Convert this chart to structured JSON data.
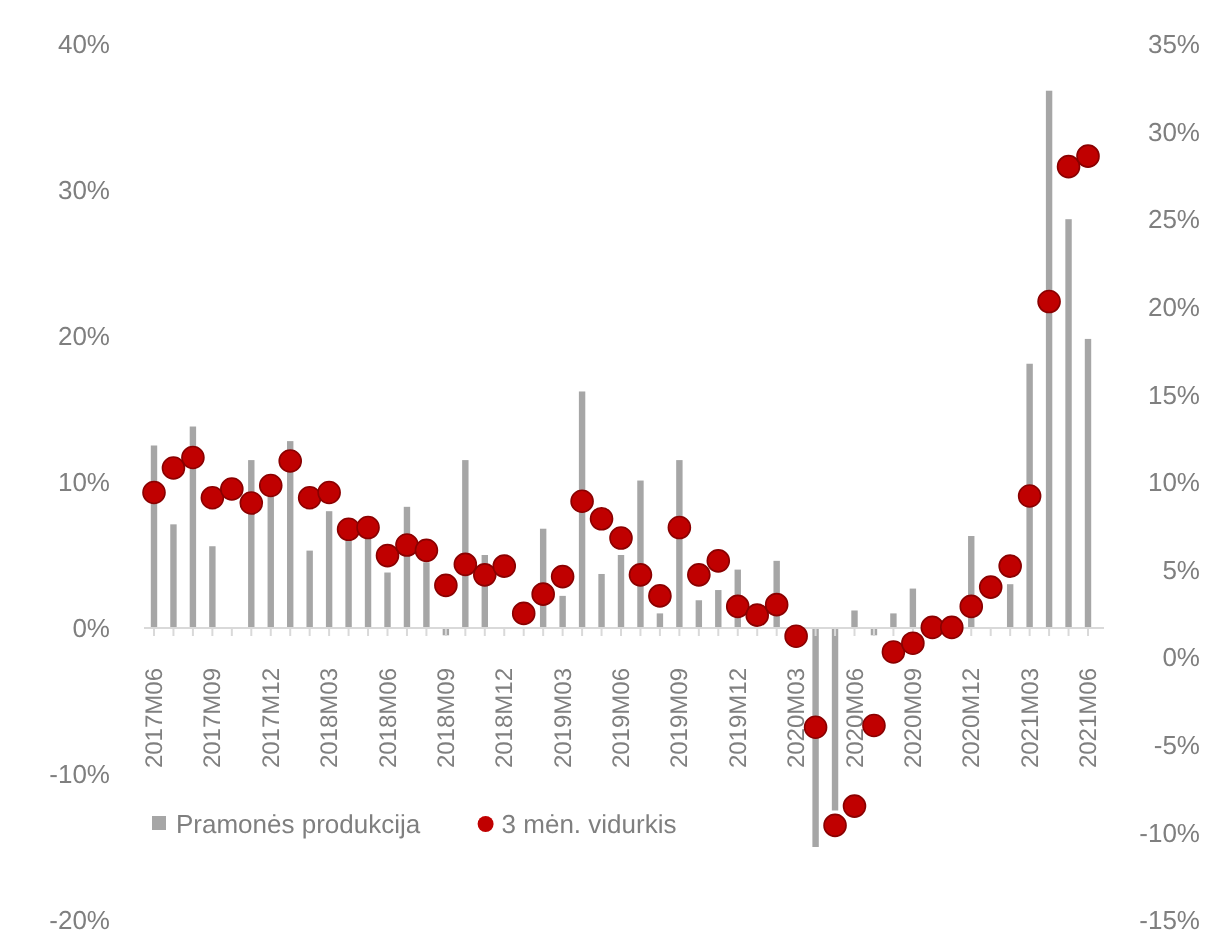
{
  "chart_data": {
    "type": "bar",
    "categories": [
      "2017M06",
      null,
      null,
      "2017M09",
      null,
      null,
      "2017M12",
      null,
      null,
      "2018M03",
      null,
      null,
      "2018M06",
      null,
      null,
      "2018M09",
      null,
      null,
      "2018M12",
      null,
      null,
      "2019M03",
      null,
      null,
      "2019M06",
      null,
      null,
      "2019M09",
      null,
      null,
      "2019M12",
      null,
      null,
      "2020M03",
      null,
      null,
      "2020M06",
      null,
      null,
      "2020M09",
      null,
      null,
      "2020M12",
      null,
      null,
      "2021M03",
      null,
      null,
      "2021M06"
    ],
    "series": [
      {
        "name": "Pramonės produkcija",
        "color": "#a6a6a6",
        "values": [
          12.5,
          7.1,
          13.8,
          5.6,
          null,
          11.5,
          9,
          12.8,
          5.3,
          8,
          6,
          6.3,
          3.8,
          8.3,
          4.5,
          -0.5,
          11.5,
          5,
          null,
          null,
          6.8,
          2.2,
          16.2,
          3.7,
          5,
          10.1,
          1,
          11.5,
          1.9,
          2.6,
          4,
          null,
          4.6,
          null,
          -15,
          -12.5,
          1.2,
          -0.5,
          1,
          2.7,
          null,
          null,
          6.3,
          null,
          3,
          18.1,
          36.8,
          28,
          19.8
        ]
      },
      {
        "name": "3 mėn. vidurkis",
        "type": "scatter",
        "axis": "y2",
        "color": "#c00000",
        "marker": "circle",
        "values": [
          9.4,
          10.8,
          11.4,
          9.1,
          9.6,
          8.8,
          9.8,
          11.2,
          9.1,
          9.4,
          7.3,
          7.4,
          5.8,
          6.4,
          6.1,
          4.1,
          5.3,
          4.7,
          5.2,
          2.5,
          3.6,
          4.6,
          8.9,
          7.9,
          6.8,
          4.7,
          3.5,
          7.4,
          4.7,
          5.5,
          2.9,
          2.4,
          3.0,
          1.2,
          -4.0,
          -9.6,
          -8.5,
          -3.9,
          0.3,
          0.8,
          1.7,
          1.7,
          2.9,
          4.0,
          5.2,
          9.2,
          20.3,
          28.0,
          28.6
        ]
      }
    ],
    "ylim": [
      -20,
      40
    ],
    "yticks": [
      {
        "value": -20,
        "label": "-20%"
      },
      {
        "value": -10,
        "label": "-10%"
      },
      {
        "value": 0,
        "label": "0%"
      },
      {
        "value": 10,
        "label": "10%"
      },
      {
        "value": 20,
        "label": "20%"
      },
      {
        "value": 30,
        "label": "30%"
      },
      {
        "value": 40,
        "label": "40%"
      }
    ],
    "y2lim": [
      -15,
      35
    ],
    "y2ticks": [
      {
        "value": -15,
        "label": "-15%"
      },
      {
        "value": -10,
        "label": "-10%"
      },
      {
        "value": -5,
        "label": "-5%"
      },
      {
        "value": 0,
        "label": "0%"
      },
      {
        "value": 5,
        "label": "5%"
      },
      {
        "value": 10,
        "label": "10%"
      },
      {
        "value": 15,
        "label": "15%"
      },
      {
        "value": 20,
        "label": "20%"
      },
      {
        "value": 25,
        "label": "25%"
      },
      {
        "value": 30,
        "label": "30%"
      },
      {
        "value": 35,
        "label": "35%"
      }
    ],
    "legend": "bottom left",
    "grid": false
  }
}
